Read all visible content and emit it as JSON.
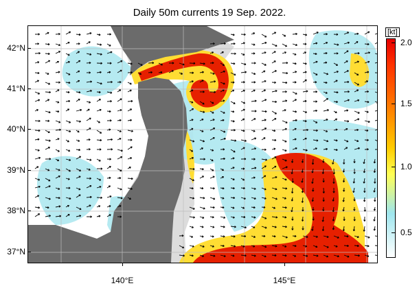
{
  "title": "Daily 50m currents 19 Sep. 2022.",
  "axes": {
    "y_labels": [
      "42°N",
      "41°N",
      "40°N",
      "39°N",
      "38°N",
      "37°N"
    ],
    "x_labels": [
      "140°E",
      "145°E"
    ]
  },
  "colorbar": {
    "unit": "[kt]",
    "labels": [
      "2.0",
      "1.5",
      "1.0",
      "0.5"
    ],
    "range": [
      0.2,
      2.0
    ]
  },
  "map_extent": {
    "lon": [
      136,
      146.5
    ],
    "lat": [
      36.5,
      42.5
    ]
  },
  "colors": {
    "land": "#6b6b6b",
    "shelf": "#d9d9d9",
    "ocean": "#ffffff",
    "strong_current": "#e62000",
    "medium_current": "#ffcc00",
    "weak_current": "#aee8f0"
  }
}
